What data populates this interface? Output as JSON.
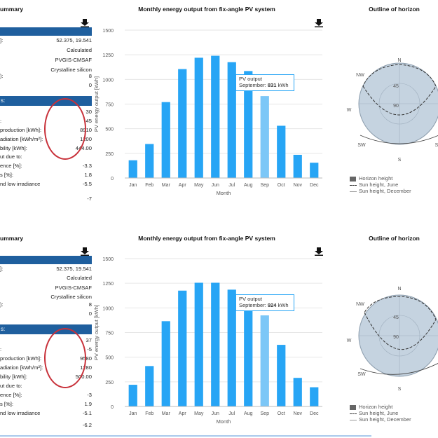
{
  "colors": {
    "bar": "#27a5f5",
    "bar_hover": "#7cc7f7",
    "accent": "#1f5f9e",
    "circle": "#c8313a",
    "horizon": "#c5d3e0"
  },
  "panels": [
    {
      "summary": {
        "title": "ummary",
        "download_icon": "download-icon",
        "rows_a": [
          {
            "label": "]:",
            "value": "52.375, 19.541"
          },
          {
            "label": "",
            "value": "Calculated"
          },
          {
            "label": "",
            "value": "PVGIS-CMSAF"
          },
          {
            "label": "",
            "value": "Crystalline silicon"
          },
          {
            "label": "):",
            "value": "8"
          },
          {
            "label": "",
            "value": "0"
          }
        ],
        "section_b": "s:",
        "rows_b": [
          {
            "label": "",
            "value": "30"
          },
          {
            "label": ":",
            "value": "45"
          },
          {
            "label": "production [kWh]:",
            "value": "8910"
          },
          {
            "label": "adiation [kWh/m²]:",
            "value": "1200"
          },
          {
            "label": "bility [kWh]:",
            "value": "444.00"
          },
          {
            "label": "ut due to:",
            "value": ""
          },
          {
            "label": "ence [%]:",
            "value": "-3.3"
          },
          {
            "label": "s [%]:",
            "value": "1.8"
          },
          {
            "label": "nd low irradiance",
            "value": "-5.5"
          },
          {
            "label": "",
            "value": ""
          },
          {
            "label": "",
            "value": "-7"
          }
        ]
      },
      "chart": {
        "title": "Monthly energy output from fix-angle PV system",
        "download_icon": "download-icon",
        "tooltip": {
          "series": "PV output",
          "month": "September:",
          "value": "831",
          "unit": "kWh"
        }
      },
      "horizon": {
        "title": "Outline of horizon",
        "labels": {
          "n": "N",
          "nw": "NW",
          "w": "W",
          "sw": "SW",
          "s": "S",
          "se": "S",
          "ne": "",
          "r45": "45",
          "r90": "90"
        },
        "legend": {
          "height": "Horizon height",
          "june": "Sun height, June",
          "december": "Sun height, December"
        }
      }
    },
    {
      "summary": {
        "title": "ummary",
        "download_icon": "download-icon",
        "rows_a": [
          {
            "label": "]:",
            "value": "52.375, 19.541"
          },
          {
            "label": "",
            "value": "Calculated"
          },
          {
            "label": "",
            "value": "PVGIS-CMSAF"
          },
          {
            "label": "",
            "value": "Crystalline silicon"
          },
          {
            "label": "):",
            "value": "8"
          },
          {
            "label": "",
            "value": "0"
          }
        ],
        "section_b": "s:",
        "rows_b": [
          {
            "label": "",
            "value": "37"
          },
          {
            "label": ":",
            "value": "-5"
          },
          {
            "label": "production [kWh]:",
            "value": "9580"
          },
          {
            "label": "adiation [kWh/m²]:",
            "value": "1280"
          },
          {
            "label": "bility [kWh]:",
            "value": "500.00"
          },
          {
            "label": "ut due to:",
            "value": ""
          },
          {
            "label": "ence [%]:",
            "value": "-3"
          },
          {
            "label": "s [%]:",
            "value": "1.9"
          },
          {
            "label": "nd low irradiance",
            "value": "-5.1"
          },
          {
            "label": "",
            "value": ""
          },
          {
            "label": "",
            "value": "-6.2"
          }
        ]
      },
      "chart": {
        "title": "Monthly energy output from fix-angle PV system",
        "download_icon": "download-icon",
        "tooltip": {
          "series": "PV output",
          "month": "September:",
          "value": "924",
          "unit": "kWh"
        }
      },
      "horizon": {
        "title": "Outline of horizon",
        "labels": {
          "n": "N",
          "nw": "NW",
          "w": "W",
          "sw": "SW",
          "s": "S",
          "se": "S",
          "ne": "N",
          "r45": "45",
          "r90": "90"
        },
        "legend": {
          "height": "Horizon height",
          "june": "Sun height, June",
          "december": "Sun height, December"
        }
      }
    }
  ],
  "chart_data": [
    {
      "type": "bar",
      "title": "Monthly energy output from fix-angle PV system",
      "xlabel": "Month",
      "ylabel": "PV energy output [kWh]",
      "categories": [
        "Jan",
        "Feb",
        "Mar",
        "Apr",
        "May",
        "Jun",
        "Jul",
        "Aug",
        "Sep",
        "Oct",
        "Nov",
        "Dec"
      ],
      "values": [
        180,
        345,
        770,
        1105,
        1220,
        1240,
        1175,
        1085,
        831,
        530,
        235,
        155
      ],
      "ylim": [
        0,
        1500
      ],
      "yticks": [
        0,
        250,
        500,
        750,
        1000,
        1250,
        1500
      ],
      "highlighted": "Sep"
    },
    {
      "type": "bar",
      "title": "Monthly energy output from fix-angle PV system",
      "xlabel": "Month",
      "ylabel": "PV energy output [kWh]",
      "categories": [
        "Jan",
        "Feb",
        "Mar",
        "Apr",
        "May",
        "Jun",
        "Jul",
        "Aug",
        "Sep",
        "Oct",
        "Nov",
        "Dec"
      ],
      "values": [
        220,
        410,
        865,
        1175,
        1255,
        1255,
        1185,
        1080,
        924,
        625,
        290,
        195
      ],
      "ylim": [
        0,
        1500
      ],
      "yticks": [
        0,
        250,
        500,
        750,
        1000,
        1250,
        1500
      ],
      "highlighted": "Sep"
    }
  ]
}
